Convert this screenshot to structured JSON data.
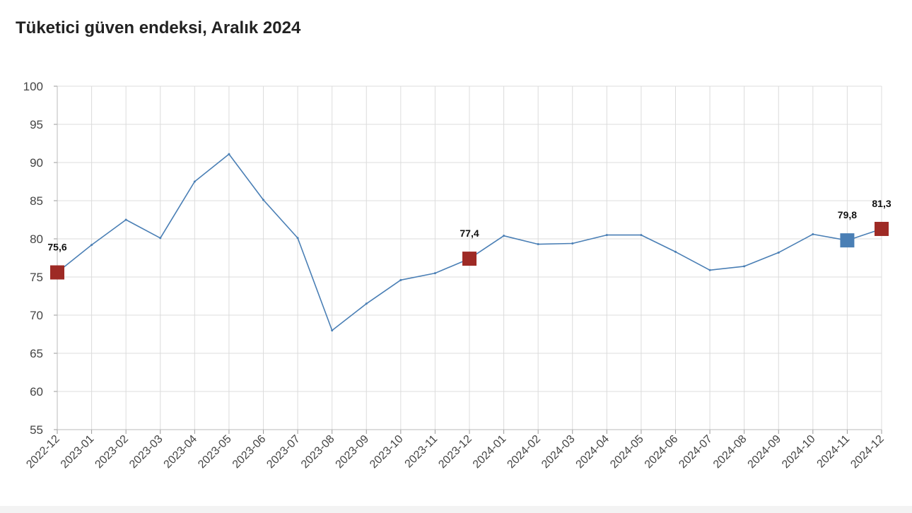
{
  "chart_data": {
    "type": "line",
    "title": "Tüketici güven endeksi, Aralık 2024",
    "xlabel": "",
    "ylabel": "",
    "ylim": [
      55,
      100
    ],
    "yticks": [
      100,
      95,
      90,
      85,
      80,
      75,
      70,
      65,
      60,
      55
    ],
    "grid": true,
    "categories": [
      "2022-12",
      "2023-01",
      "2023-02",
      "2023-03",
      "2023-04",
      "2023-05",
      "2023-06",
      "2023-07",
      "2023-08",
      "2023-09",
      "2023-10",
      "2023-11",
      "2023-12",
      "2024-01",
      "2024-02",
      "2024-03",
      "2024-04",
      "2024-05",
      "2024-06",
      "2024-07",
      "2024-08",
      "2024-09",
      "2024-10",
      "2024-11",
      "2024-12"
    ],
    "series": [
      {
        "values": [
          75.6,
          79.2,
          82.5,
          80.1,
          87.5,
          91.1,
          85.1,
          80.1,
          68.0,
          71.5,
          74.6,
          75.5,
          77.4,
          80.4,
          79.3,
          79.4,
          80.5,
          80.5,
          78.3,
          75.9,
          76.4,
          78.2,
          80.6,
          79.8,
          81.3
        ],
        "color": "#4a7fb5"
      }
    ],
    "highlights": [
      {
        "category": "2022-12",
        "value": 75.6,
        "label": "75,6",
        "color": "#9e2a25"
      },
      {
        "category": "2023-12",
        "value": 77.4,
        "label": "77,4",
        "color": "#9e2a25"
      },
      {
        "category": "2024-11",
        "value": 79.8,
        "label": "79,8",
        "color": "#4a7fb5"
      },
      {
        "category": "2024-12",
        "value": 81.3,
        "label": "81,3",
        "color": "#9e2a25"
      }
    ]
  }
}
